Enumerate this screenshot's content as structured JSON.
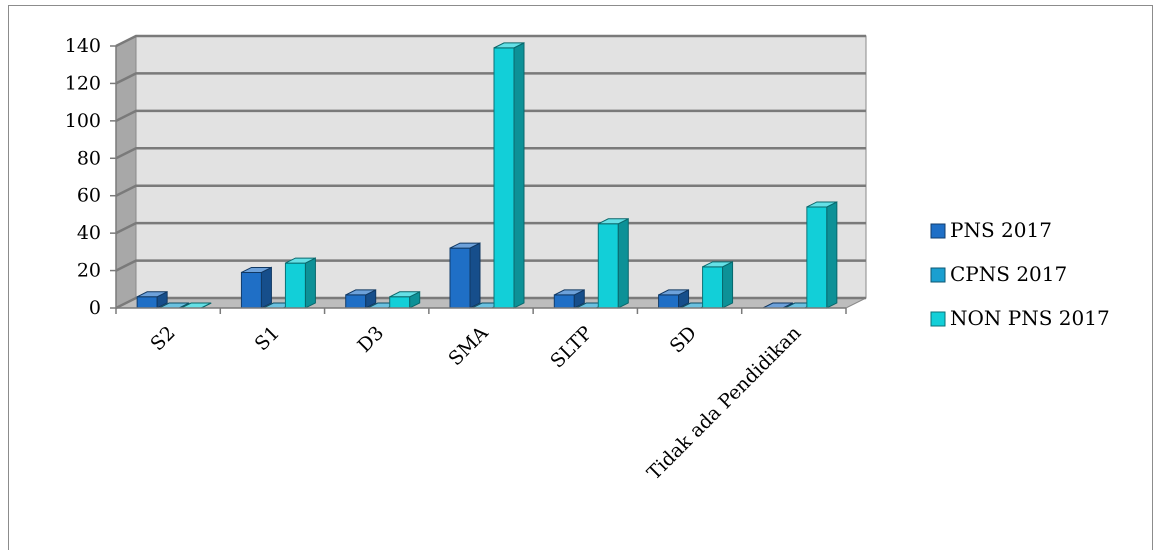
{
  "chart_data": {
    "type": "bar",
    "title": "",
    "xlabel": "",
    "ylabel": "",
    "categories": [
      "S2",
      "S1",
      "D3",
      "SMA",
      "SLTP",
      "SD",
      "Tidak ada Pendidikan"
    ],
    "series": [
      {
        "name": "PNS 2017",
        "values": [
          6,
          19,
          7,
          32,
          7,
          7,
          0
        ],
        "color": "#1f6fc6"
      },
      {
        "name": "CPNS 2017",
        "values": [
          0,
          0,
          0,
          0,
          0,
          0,
          0
        ],
        "color": "#1a9fd0"
      },
      {
        "name": "NON PNS 2017",
        "values": [
          0,
          24,
          6,
          139,
          45,
          22,
          54
        ],
        "color": "#12cfd8"
      }
    ],
    "ylim": [
      0,
      140
    ],
    "yticks": [
      0,
      20,
      40,
      60,
      80,
      100,
      120,
      140
    ],
    "grid": true,
    "legend_position": "right",
    "three_d": true
  }
}
